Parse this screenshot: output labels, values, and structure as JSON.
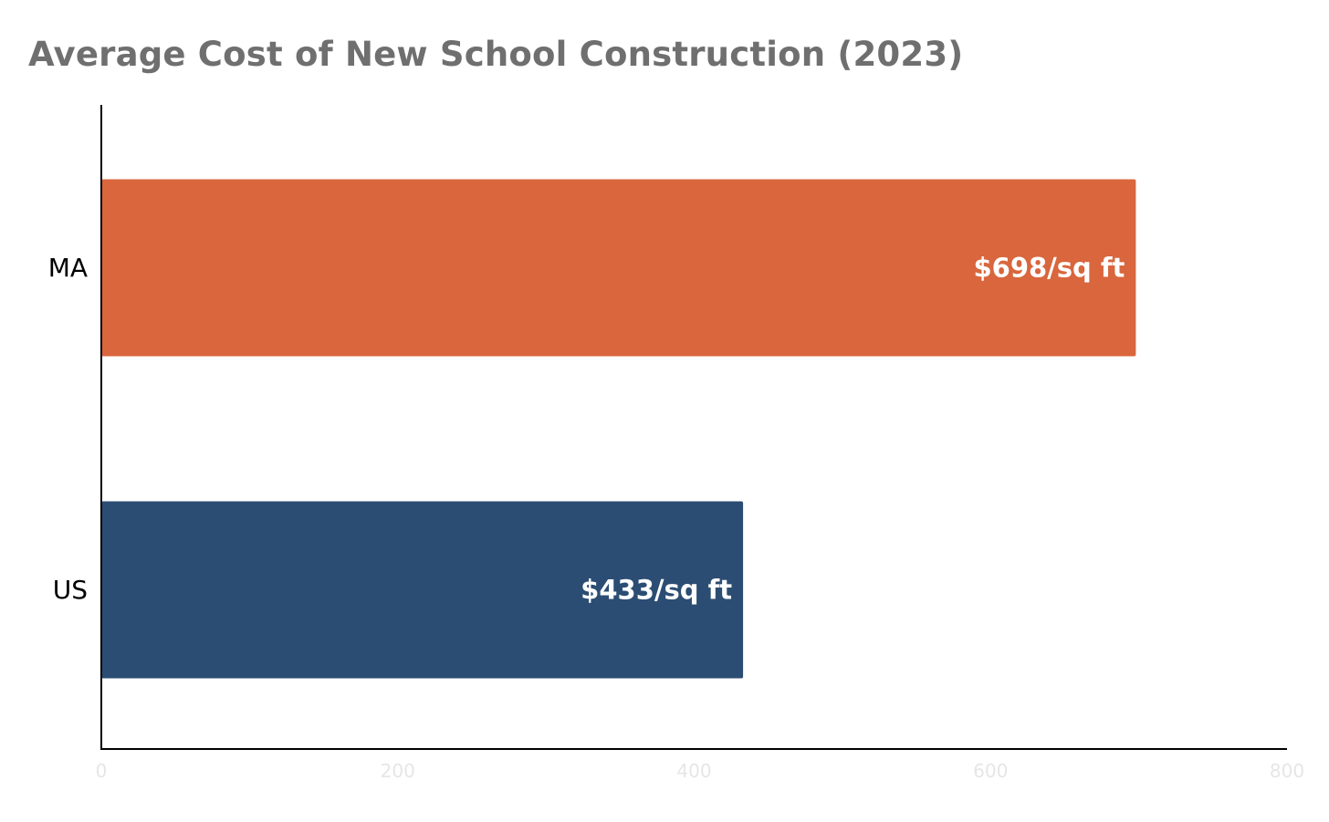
{
  "chart_data": {
    "type": "bar",
    "orientation": "horizontal",
    "title": "Average Cost of New School Construction (2023)",
    "categories": [
      "MA",
      "US"
    ],
    "values": [
      698,
      433
    ],
    "data_labels": [
      "$698/sq ft",
      "$433/sq ft"
    ],
    "bar_colors": [
      "#d9663d",
      "#2c4d73"
    ],
    "xlim": [
      0,
      800
    ],
    "xticks": [
      0,
      200,
      400,
      600,
      800
    ],
    "xlabel": "",
    "ylabel": "",
    "grid": false,
    "legend": "none"
  },
  "colors": {
    "title": "#6f6f6f",
    "axis": "#000000",
    "tick_label": "#e6e6e6",
    "background": "#ffffff"
  }
}
